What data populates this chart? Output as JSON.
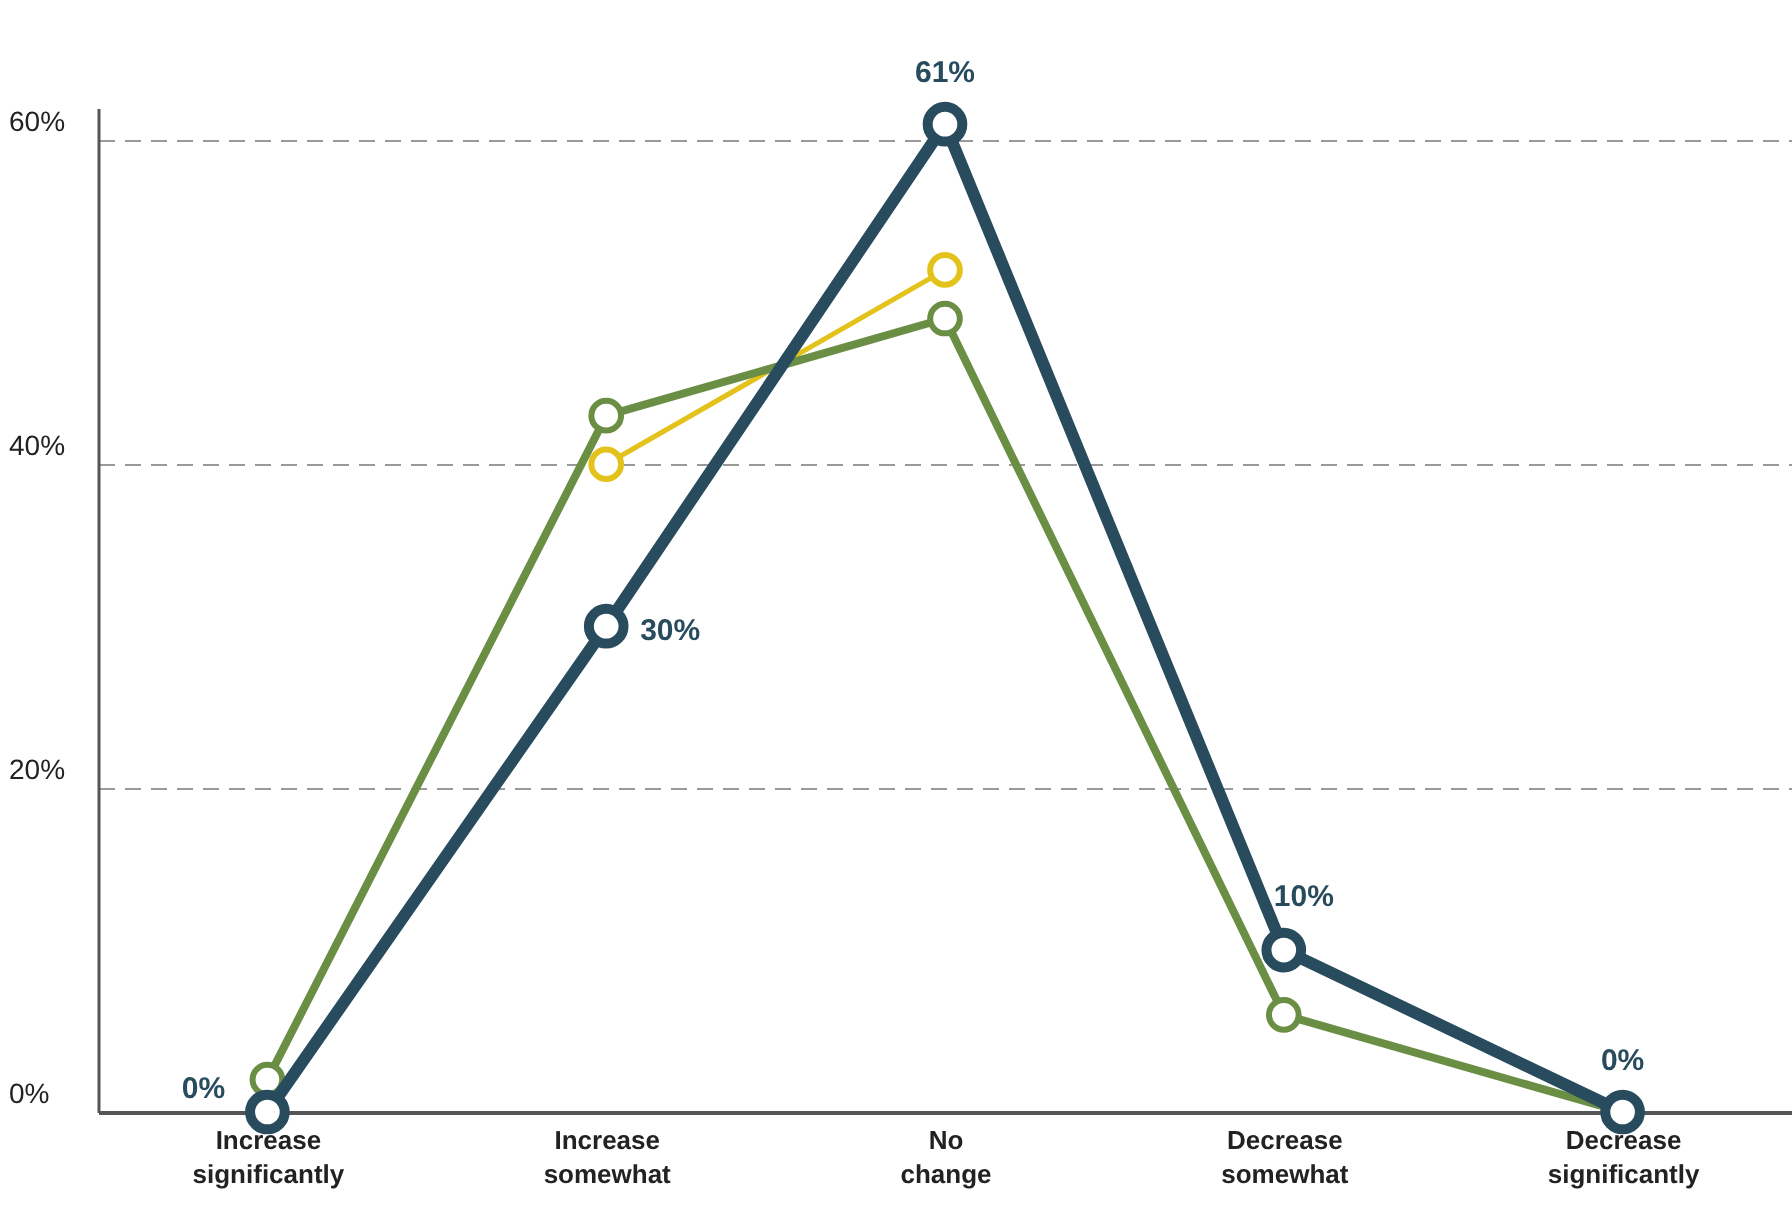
{
  "chart_data": {
    "type": "line",
    "categories": [
      "Increase significantly",
      "Increase somewhat",
      "No change",
      "Decrease somewhat",
      "Decrease significantly"
    ],
    "series": [
      {
        "color": "#e3c21c",
        "values": [
          null,
          40,
          52,
          null,
          null
        ]
      },
      {
        "color": "#6b8e45",
        "values": [
          2,
          43,
          49,
          6,
          0
        ]
      },
      {
        "color": "#284b5e",
        "values": [
          0,
          30,
          61,
          10,
          0
        ],
        "value_labels": [
          "0%",
          "30%",
          "61%",
          "10%",
          "0%"
        ]
      }
    ],
    "ylim": [
      0,
      62
    ],
    "yticks": [
      {
        "value": 0,
        "label": "0%"
      },
      {
        "value": 20,
        "label": "20%"
      },
      {
        "value": 40,
        "label": "40%"
      },
      {
        "value": 60,
        "label": "60%"
      }
    ],
    "grid": "y",
    "marker": "circle",
    "line_style": "solid"
  }
}
